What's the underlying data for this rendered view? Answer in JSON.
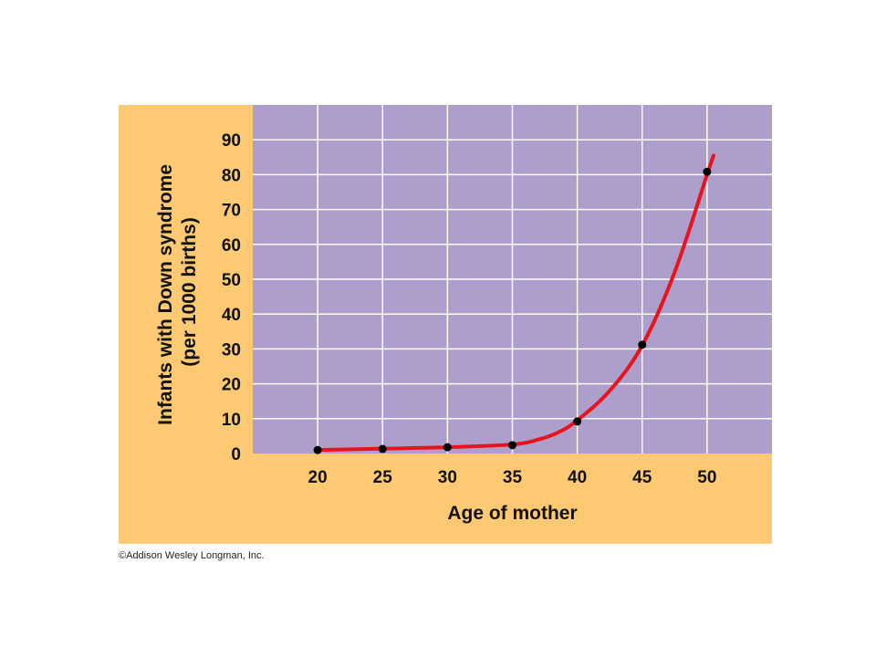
{
  "chart_data": {
    "type": "line",
    "xlabel": "Age of mother",
    "ylabel_lines": [
      "Infants with Down syndrome",
      "(per 1000 births)"
    ],
    "x_ticks": [
      20,
      25,
      30,
      35,
      40,
      45,
      50
    ],
    "y_ticks": [
      0,
      10,
      20,
      30,
      40,
      50,
      60,
      70,
      80,
      90
    ],
    "xlim": [
      15,
      55
    ],
    "ylim": [
      0,
      100
    ],
    "grid": true,
    "series": [
      {
        "points": [
          {
            "x": 20,
            "y": 1
          },
          {
            "x": 25,
            "y": 1.3
          },
          {
            "x": 30,
            "y": 1.8
          },
          {
            "x": 35,
            "y": 2.4
          },
          {
            "x": 40,
            "y": 9.2
          },
          {
            "x": 45,
            "y": 31.2
          },
          {
            "x": 50,
            "y": 80.8
          }
        ],
        "curve": [
          {
            "x": 20,
            "y": 1
          },
          {
            "x": 25,
            "y": 1.4
          },
          {
            "x": 30,
            "y": 1.8
          },
          {
            "x": 35,
            "y": 2.6
          },
          {
            "x": 37,
            "y": 4
          },
          {
            "x": 38.5,
            "y": 6
          },
          {
            "x": 40,
            "y": 9.5
          },
          {
            "x": 42.5,
            "y": 18
          },
          {
            "x": 45,
            "y": 31
          },
          {
            "x": 47.5,
            "y": 52
          },
          {
            "x": 50,
            "y": 80
          },
          {
            "x": 50.5,
            "y": 85.5
          }
        ]
      }
    ],
    "colors": {
      "outer_background": "#fdca73",
      "plot_background": "#ae9ecb",
      "grid": "#ffffff",
      "line": "#e8131c",
      "marker": "#000000"
    }
  },
  "credit": "©Addison Wesley Longman, Inc."
}
